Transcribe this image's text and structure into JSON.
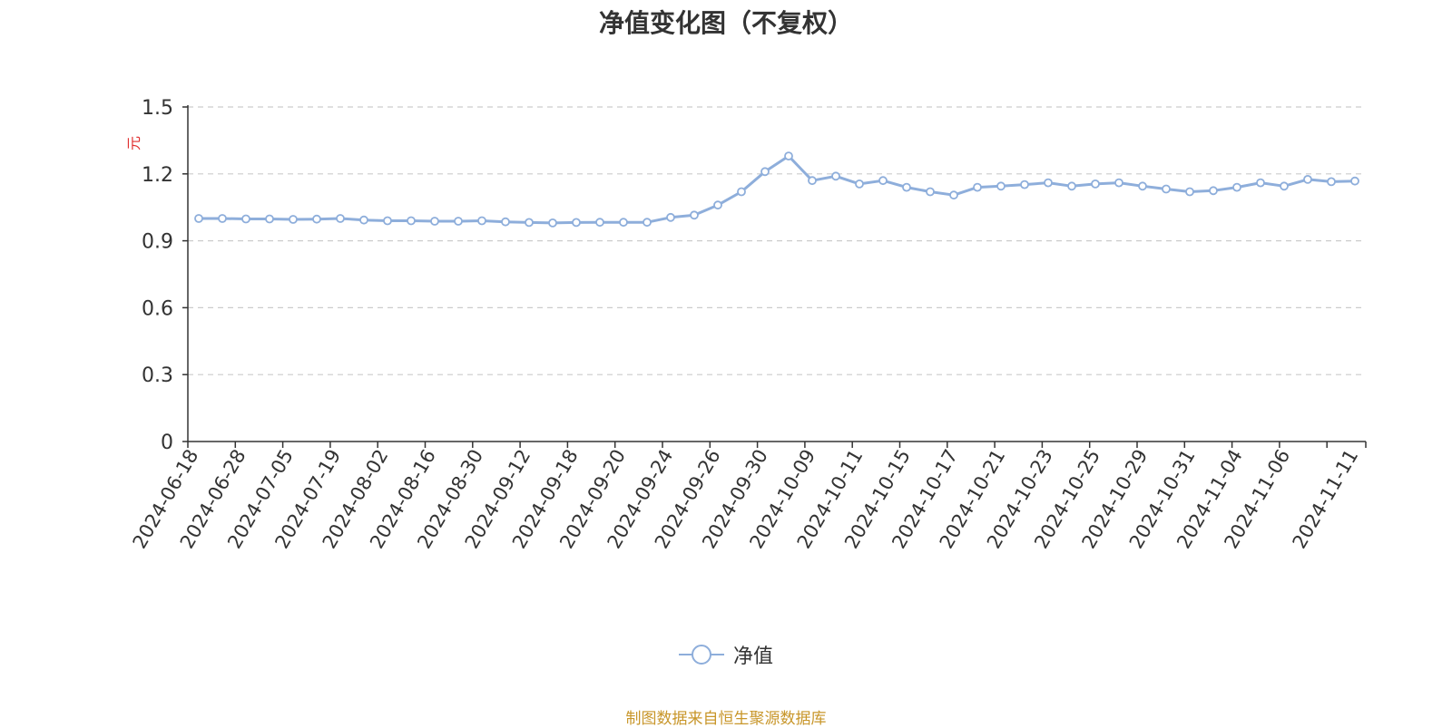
{
  "chart_data": {
    "type": "line",
    "title": "净值变化图（不复权）",
    "ylabel": "元",
    "ylim": [
      0,
      1.5
    ],
    "yticks": [
      "0",
      "0.3",
      "0.6",
      "0.9",
      "1.2",
      "1.5"
    ],
    "grid": true,
    "legend_position": "bottom-center",
    "line_color": "#8eaedb",
    "xtick_labels": [
      "2024-06-18",
      "2024-06-28",
      "2024-07-05",
      "2024-07-19",
      "2024-08-02",
      "2024-08-16",
      "2024-08-30",
      "2024-09-12",
      "2024-09-18",
      "2024-09-20",
      "2024-09-24",
      "2024-09-26",
      "2024-09-30",
      "2024-10-09",
      "2024-10-11",
      "2024-10-15",
      "2024-10-17",
      "2024-10-21",
      "2024-10-23",
      "2024-10-25",
      "2024-10-29",
      "2024-10-31",
      "2024-11-04",
      "2024-11-06",
      "2024-11-11"
    ],
    "series": [
      {
        "name": "净值",
        "values": [
          1.0,
          1.0,
          0.998,
          0.998,
          0.996,
          0.997,
          1.0,
          0.993,
          0.99,
          0.99,
          0.988,
          0.988,
          0.99,
          0.985,
          0.982,
          0.98,
          0.982,
          0.983,
          0.983,
          0.983,
          1.005,
          1.015,
          1.06,
          1.12,
          1.21,
          1.28,
          1.17,
          1.19,
          1.155,
          1.17,
          1.14,
          1.12,
          1.105,
          1.14,
          1.145,
          1.152,
          1.16,
          1.145,
          1.155,
          1.16,
          1.145,
          1.132,
          1.12,
          1.125,
          1.14,
          1.16,
          1.145,
          1.175,
          1.165,
          1.168
        ]
      }
    ]
  },
  "source_note": "制图数据来自恒生聚源数据库"
}
